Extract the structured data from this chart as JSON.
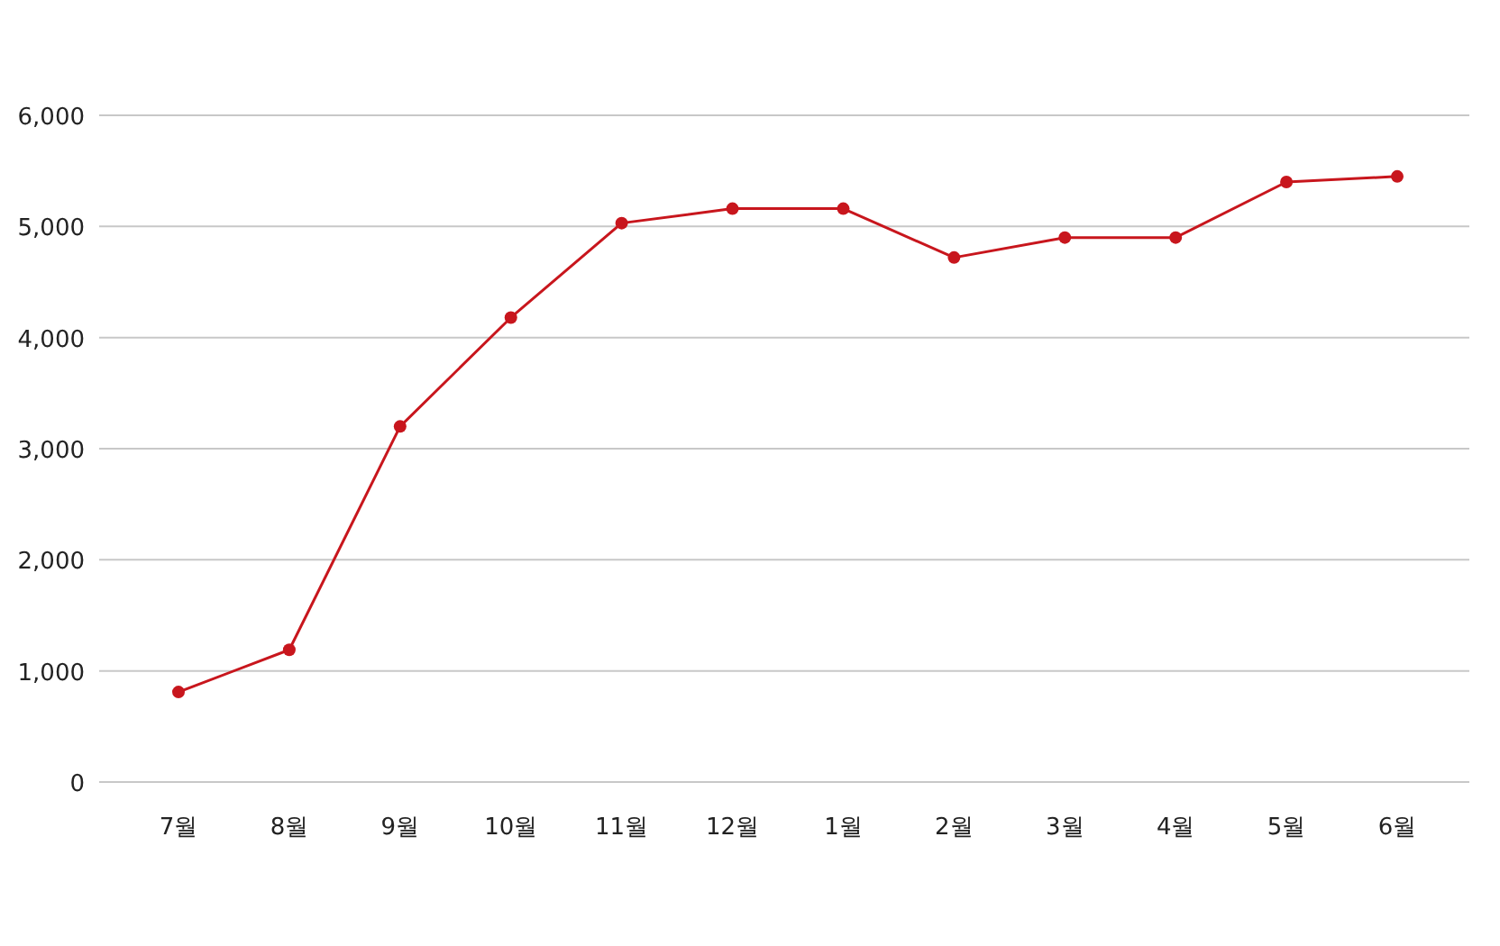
{
  "chart_data": {
    "type": "line",
    "categories": [
      "7월",
      "8월",
      "9월",
      "10월",
      "11월",
      "12월",
      "1월",
      "2월",
      "3월",
      "4월",
      "5월",
      "6월"
    ],
    "series": [
      {
        "color": "#c8161d",
        "values": [
          810,
          1190,
          3200,
          4180,
          5030,
          5160,
          5160,
          4720,
          4900,
          4900,
          5400,
          5450
        ]
      }
    ],
    "ylim": [
      0,
      6000
    ],
    "yticks": [
      {
        "value": 0,
        "label": "0"
      },
      {
        "value": 1000,
        "label": "1,000"
      },
      {
        "value": 2000,
        "label": "2,000"
      },
      {
        "value": 3000,
        "label": "3,000"
      },
      {
        "value": 4000,
        "label": "4,000"
      },
      {
        "value": 5000,
        "label": "5,000"
      },
      {
        "value": 6000,
        "label": "6,000"
      }
    ],
    "grid": "y",
    "marker": "circle"
  }
}
